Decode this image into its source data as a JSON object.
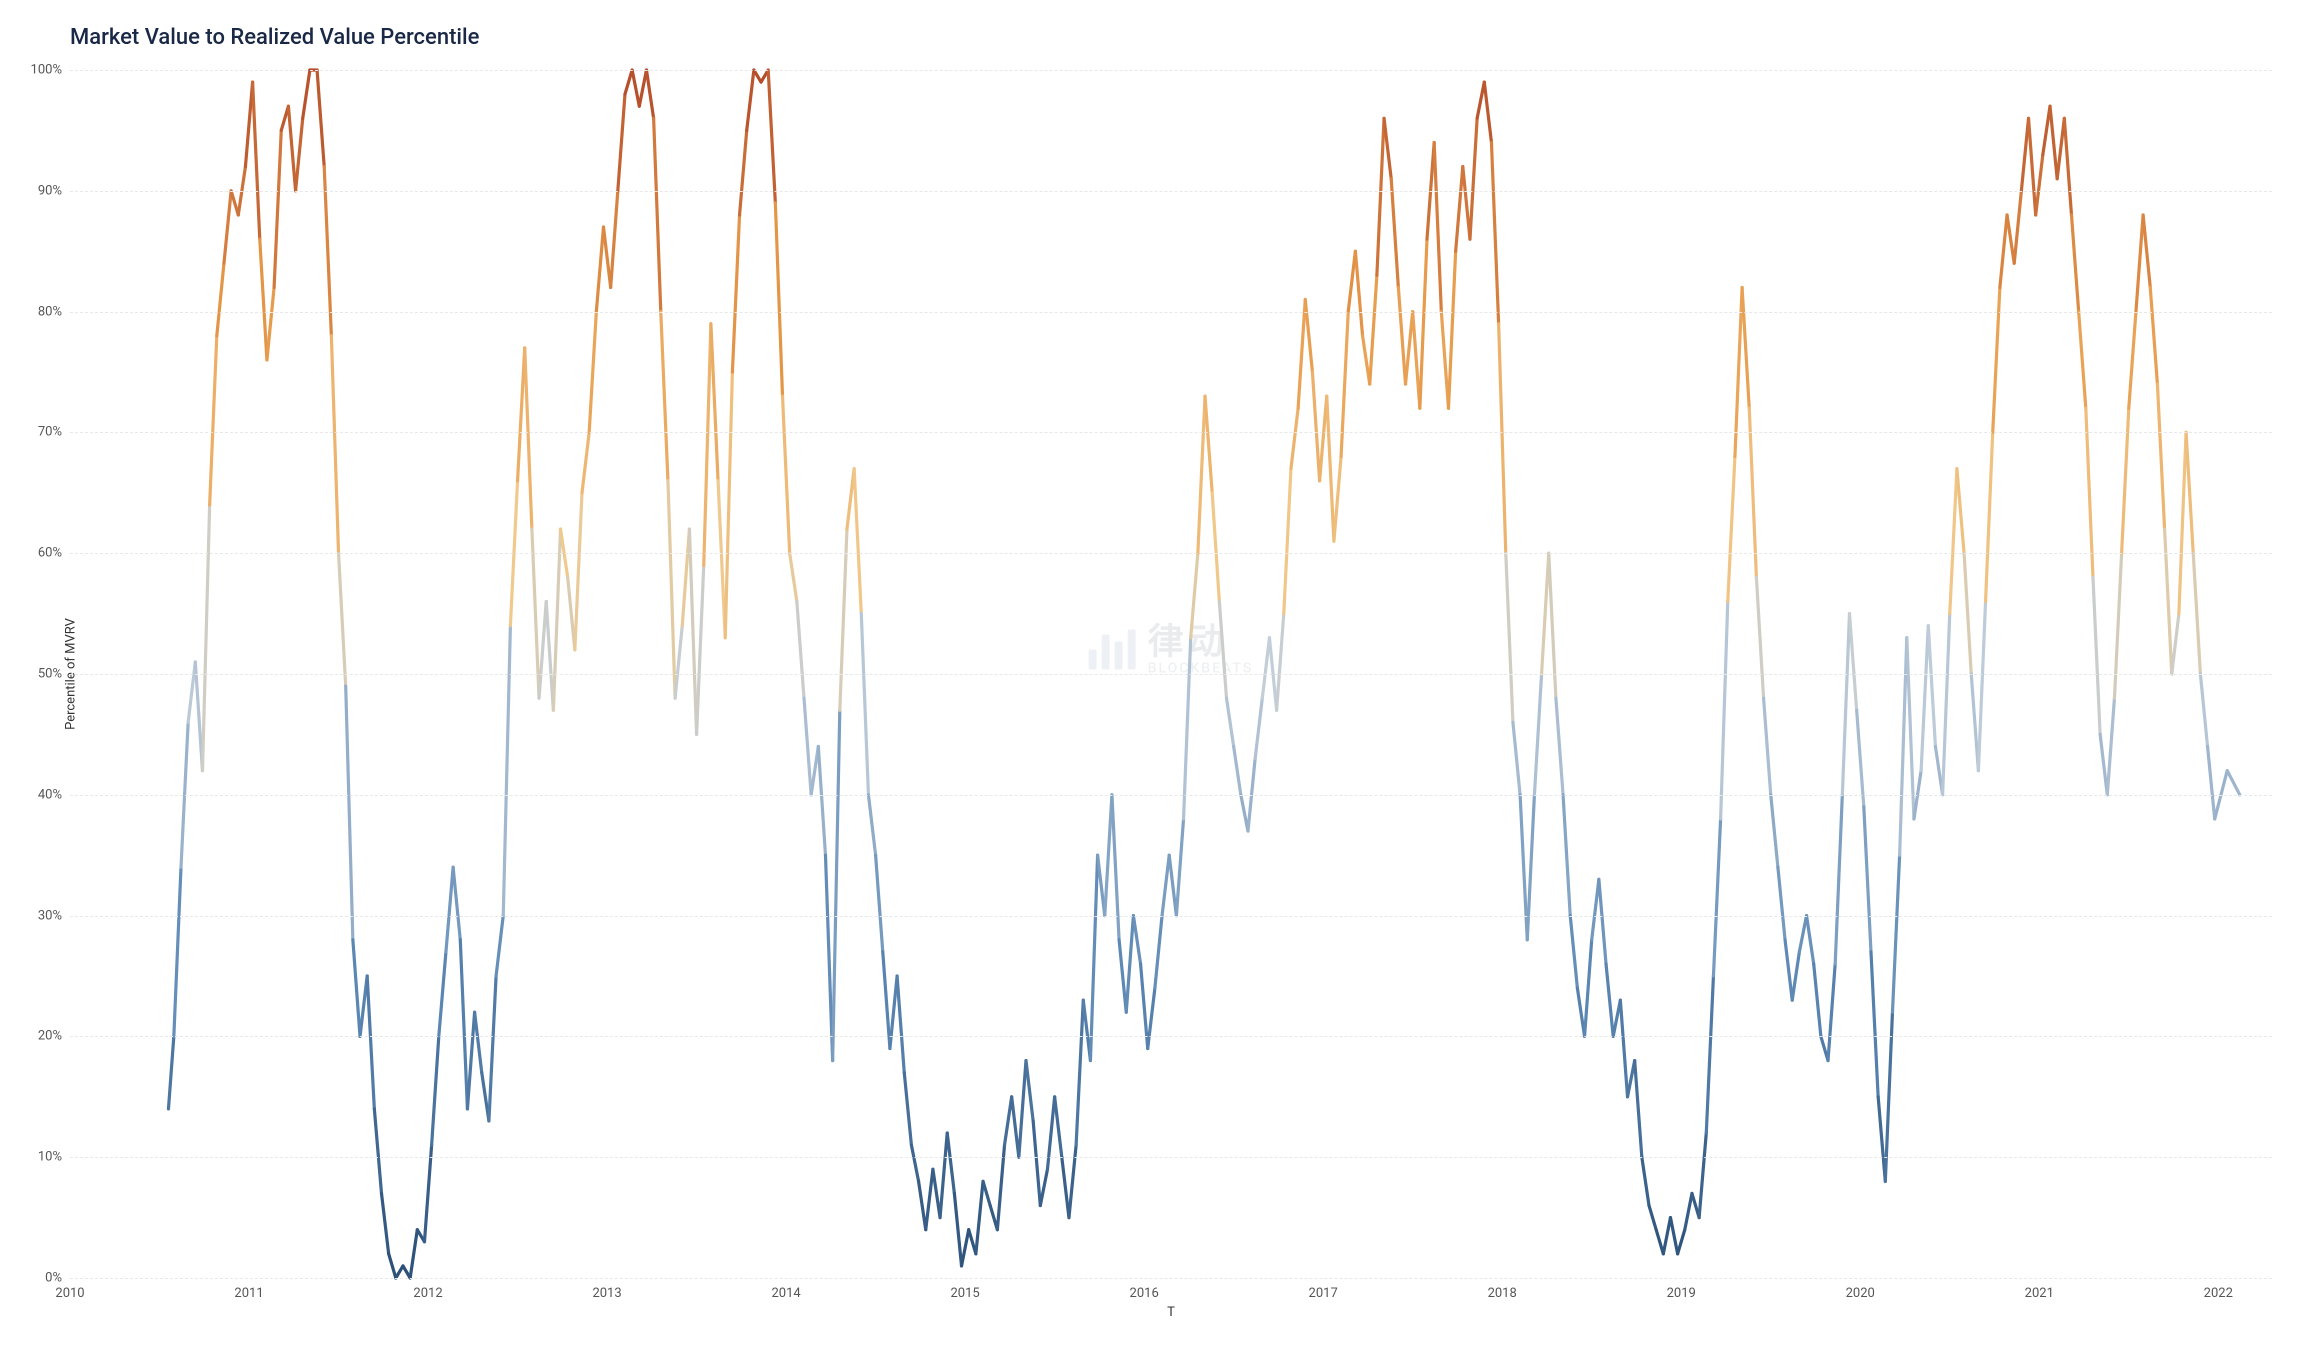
{
  "chart": {
    "type": "line",
    "title": "Market Value to Realized Value Percentile",
    "xlabel": "T",
    "ylabel": "Percentile of MVRV",
    "background_color": "#ffffff",
    "grid_color": "#e8e8e8",
    "title_color": "#1a2847",
    "title_fontsize": 22,
    "label_fontsize": 13,
    "tick_fontsize": 13,
    "tick_color": "#555555",
    "line_width": 1.6,
    "xlim": [
      2010,
      2022.3
    ],
    "ylim": [
      0,
      100
    ],
    "yticks": [
      0,
      10,
      20,
      30,
      40,
      50,
      60,
      70,
      80,
      90,
      100
    ],
    "ytick_labels": [
      "0%",
      "10%",
      "20%",
      "30%",
      "40%",
      "50%",
      "60%",
      "70%",
      "80%",
      "90%",
      "100%"
    ],
    "xticks": [
      2010,
      2011,
      2012,
      2013,
      2014,
      2015,
      2016,
      2017,
      2018,
      2019,
      2020,
      2021,
      2022
    ],
    "xtick_labels": [
      "2010",
      "2011",
      "2012",
      "2013",
      "2014",
      "2015",
      "2016",
      "2017",
      "2018",
      "2019",
      "2020",
      "2021",
      "2022"
    ],
    "gradient_stops": [
      {
        "v": 0,
        "c": "#2b4f77"
      },
      {
        "v": 25,
        "c": "#5d89b5"
      },
      {
        "v": 50,
        "c": "#c2ceda"
      },
      {
        "v": 60,
        "c": "#f0c98c"
      },
      {
        "v": 80,
        "c": "#e79a4a"
      },
      {
        "v": 100,
        "c": "#b34b2a"
      }
    ],
    "series": [
      {
        "x": 2010.55,
        "y": 14
      },
      {
        "x": 2010.58,
        "y": 20
      },
      {
        "x": 2010.62,
        "y": 34
      },
      {
        "x": 2010.66,
        "y": 46
      },
      {
        "x": 2010.7,
        "y": 51
      },
      {
        "x": 2010.74,
        "y": 42
      },
      {
        "x": 2010.78,
        "y": 64
      },
      {
        "x": 2010.82,
        "y": 78
      },
      {
        "x": 2010.86,
        "y": 84
      },
      {
        "x": 2010.9,
        "y": 90
      },
      {
        "x": 2010.94,
        "y": 88
      },
      {
        "x": 2010.98,
        "y": 92
      },
      {
        "x": 2011.02,
        "y": 99
      },
      {
        "x": 2011.06,
        "y": 86
      },
      {
        "x": 2011.1,
        "y": 76
      },
      {
        "x": 2011.14,
        "y": 82
      },
      {
        "x": 2011.18,
        "y": 95
      },
      {
        "x": 2011.22,
        "y": 97
      },
      {
        "x": 2011.26,
        "y": 90
      },
      {
        "x": 2011.3,
        "y": 96
      },
      {
        "x": 2011.34,
        "y": 100
      },
      {
        "x": 2011.38,
        "y": 100
      },
      {
        "x": 2011.42,
        "y": 92
      },
      {
        "x": 2011.46,
        "y": 78
      },
      {
        "x": 2011.5,
        "y": 60
      },
      {
        "x": 2011.54,
        "y": 49
      },
      {
        "x": 2011.58,
        "y": 28
      },
      {
        "x": 2011.62,
        "y": 20
      },
      {
        "x": 2011.66,
        "y": 25
      },
      {
        "x": 2011.7,
        "y": 14
      },
      {
        "x": 2011.74,
        "y": 7
      },
      {
        "x": 2011.78,
        "y": 2
      },
      {
        "x": 2011.82,
        "y": 0
      },
      {
        "x": 2011.86,
        "y": 1
      },
      {
        "x": 2011.9,
        "y": 0
      },
      {
        "x": 2011.94,
        "y": 4
      },
      {
        "x": 2011.98,
        "y": 3
      },
      {
        "x": 2012.02,
        "y": 11
      },
      {
        "x": 2012.06,
        "y": 20
      },
      {
        "x": 2012.1,
        "y": 27
      },
      {
        "x": 2012.14,
        "y": 34
      },
      {
        "x": 2012.18,
        "y": 28
      },
      {
        "x": 2012.22,
        "y": 14
      },
      {
        "x": 2012.26,
        "y": 22
      },
      {
        "x": 2012.3,
        "y": 17
      },
      {
        "x": 2012.34,
        "y": 13
      },
      {
        "x": 2012.38,
        "y": 25
      },
      {
        "x": 2012.42,
        "y": 30
      },
      {
        "x": 2012.46,
        "y": 54
      },
      {
        "x": 2012.5,
        "y": 66
      },
      {
        "x": 2012.54,
        "y": 77
      },
      {
        "x": 2012.58,
        "y": 62
      },
      {
        "x": 2012.62,
        "y": 48
      },
      {
        "x": 2012.66,
        "y": 56
      },
      {
        "x": 2012.7,
        "y": 47
      },
      {
        "x": 2012.74,
        "y": 62
      },
      {
        "x": 2012.78,
        "y": 58
      },
      {
        "x": 2012.82,
        "y": 52
      },
      {
        "x": 2012.86,
        "y": 65
      },
      {
        "x": 2012.9,
        "y": 70
      },
      {
        "x": 2012.94,
        "y": 80
      },
      {
        "x": 2012.98,
        "y": 87
      },
      {
        "x": 2013.02,
        "y": 82
      },
      {
        "x": 2013.06,
        "y": 90
      },
      {
        "x": 2013.1,
        "y": 98
      },
      {
        "x": 2013.14,
        "y": 100
      },
      {
        "x": 2013.18,
        "y": 97
      },
      {
        "x": 2013.22,
        "y": 100
      },
      {
        "x": 2013.26,
        "y": 96
      },
      {
        "x": 2013.3,
        "y": 80
      },
      {
        "x": 2013.34,
        "y": 66
      },
      {
        "x": 2013.38,
        "y": 48
      },
      {
        "x": 2013.42,
        "y": 54
      },
      {
        "x": 2013.46,
        "y": 62
      },
      {
        "x": 2013.5,
        "y": 45
      },
      {
        "x": 2013.54,
        "y": 59
      },
      {
        "x": 2013.58,
        "y": 79
      },
      {
        "x": 2013.62,
        "y": 66
      },
      {
        "x": 2013.66,
        "y": 53
      },
      {
        "x": 2013.7,
        "y": 75
      },
      {
        "x": 2013.74,
        "y": 88
      },
      {
        "x": 2013.78,
        "y": 95
      },
      {
        "x": 2013.82,
        "y": 100
      },
      {
        "x": 2013.86,
        "y": 99
      },
      {
        "x": 2013.9,
        "y": 100
      },
      {
        "x": 2013.94,
        "y": 89
      },
      {
        "x": 2013.98,
        "y": 73
      },
      {
        "x": 2014.02,
        "y": 60
      },
      {
        "x": 2014.06,
        "y": 56
      },
      {
        "x": 2014.1,
        "y": 48
      },
      {
        "x": 2014.14,
        "y": 40
      },
      {
        "x": 2014.18,
        "y": 44
      },
      {
        "x": 2014.22,
        "y": 35
      },
      {
        "x": 2014.26,
        "y": 18
      },
      {
        "x": 2014.3,
        "y": 47
      },
      {
        "x": 2014.34,
        "y": 62
      },
      {
        "x": 2014.38,
        "y": 67
      },
      {
        "x": 2014.42,
        "y": 55
      },
      {
        "x": 2014.46,
        "y": 40
      },
      {
        "x": 2014.5,
        "y": 35
      },
      {
        "x": 2014.54,
        "y": 27
      },
      {
        "x": 2014.58,
        "y": 19
      },
      {
        "x": 2014.62,
        "y": 25
      },
      {
        "x": 2014.66,
        "y": 17
      },
      {
        "x": 2014.7,
        "y": 11
      },
      {
        "x": 2014.74,
        "y": 8
      },
      {
        "x": 2014.78,
        "y": 4
      },
      {
        "x": 2014.82,
        "y": 9
      },
      {
        "x": 2014.86,
        "y": 5
      },
      {
        "x": 2014.9,
        "y": 12
      },
      {
        "x": 2014.94,
        "y": 7
      },
      {
        "x": 2014.98,
        "y": 1
      },
      {
        "x": 2015.02,
        "y": 4
      },
      {
        "x": 2015.06,
        "y": 2
      },
      {
        "x": 2015.1,
        "y": 8
      },
      {
        "x": 2015.14,
        "y": 6
      },
      {
        "x": 2015.18,
        "y": 4
      },
      {
        "x": 2015.22,
        "y": 11
      },
      {
        "x": 2015.26,
        "y": 15
      },
      {
        "x": 2015.3,
        "y": 10
      },
      {
        "x": 2015.34,
        "y": 18
      },
      {
        "x": 2015.38,
        "y": 13
      },
      {
        "x": 2015.42,
        "y": 6
      },
      {
        "x": 2015.46,
        "y": 9
      },
      {
        "x": 2015.5,
        "y": 15
      },
      {
        "x": 2015.54,
        "y": 10
      },
      {
        "x": 2015.58,
        "y": 5
      },
      {
        "x": 2015.62,
        "y": 11
      },
      {
        "x": 2015.66,
        "y": 23
      },
      {
        "x": 2015.7,
        "y": 18
      },
      {
        "x": 2015.74,
        "y": 35
      },
      {
        "x": 2015.78,
        "y": 30
      },
      {
        "x": 2015.82,
        "y": 40
      },
      {
        "x": 2015.86,
        "y": 28
      },
      {
        "x": 2015.9,
        "y": 22
      },
      {
        "x": 2015.94,
        "y": 30
      },
      {
        "x": 2015.98,
        "y": 26
      },
      {
        "x": 2016.02,
        "y": 19
      },
      {
        "x": 2016.06,
        "y": 24
      },
      {
        "x": 2016.1,
        "y": 30
      },
      {
        "x": 2016.14,
        "y": 35
      },
      {
        "x": 2016.18,
        "y": 30
      },
      {
        "x": 2016.22,
        "y": 38
      },
      {
        "x": 2016.26,
        "y": 53
      },
      {
        "x": 2016.3,
        "y": 60
      },
      {
        "x": 2016.34,
        "y": 73
      },
      {
        "x": 2016.38,
        "y": 65
      },
      {
        "x": 2016.42,
        "y": 56
      },
      {
        "x": 2016.46,
        "y": 48
      },
      {
        "x": 2016.5,
        "y": 44
      },
      {
        "x": 2016.54,
        "y": 40
      },
      {
        "x": 2016.58,
        "y": 37
      },
      {
        "x": 2016.62,
        "y": 43
      },
      {
        "x": 2016.66,
        "y": 48
      },
      {
        "x": 2016.7,
        "y": 53
      },
      {
        "x": 2016.74,
        "y": 47
      },
      {
        "x": 2016.78,
        "y": 55
      },
      {
        "x": 2016.82,
        "y": 67
      },
      {
        "x": 2016.86,
        "y": 72
      },
      {
        "x": 2016.9,
        "y": 81
      },
      {
        "x": 2016.94,
        "y": 75
      },
      {
        "x": 2016.98,
        "y": 66
      },
      {
        "x": 2017.02,
        "y": 73
      },
      {
        "x": 2017.06,
        "y": 61
      },
      {
        "x": 2017.1,
        "y": 68
      },
      {
        "x": 2017.14,
        "y": 80
      },
      {
        "x": 2017.18,
        "y": 85
      },
      {
        "x": 2017.22,
        "y": 78
      },
      {
        "x": 2017.26,
        "y": 74
      },
      {
        "x": 2017.3,
        "y": 83
      },
      {
        "x": 2017.34,
        "y": 96
      },
      {
        "x": 2017.38,
        "y": 91
      },
      {
        "x": 2017.42,
        "y": 82
      },
      {
        "x": 2017.46,
        "y": 74
      },
      {
        "x": 2017.5,
        "y": 80
      },
      {
        "x": 2017.54,
        "y": 72
      },
      {
        "x": 2017.58,
        "y": 86
      },
      {
        "x": 2017.62,
        "y": 94
      },
      {
        "x": 2017.66,
        "y": 80
      },
      {
        "x": 2017.7,
        "y": 72
      },
      {
        "x": 2017.74,
        "y": 85
      },
      {
        "x": 2017.78,
        "y": 92
      },
      {
        "x": 2017.82,
        "y": 86
      },
      {
        "x": 2017.86,
        "y": 96
      },
      {
        "x": 2017.9,
        "y": 99
      },
      {
        "x": 2017.94,
        "y": 94
      },
      {
        "x": 2017.98,
        "y": 79
      },
      {
        "x": 2018.02,
        "y": 60
      },
      {
        "x": 2018.06,
        "y": 46
      },
      {
        "x": 2018.1,
        "y": 40
      },
      {
        "x": 2018.14,
        "y": 28
      },
      {
        "x": 2018.18,
        "y": 40
      },
      {
        "x": 2018.22,
        "y": 50
      },
      {
        "x": 2018.26,
        "y": 60
      },
      {
        "x": 2018.3,
        "y": 48
      },
      {
        "x": 2018.34,
        "y": 40
      },
      {
        "x": 2018.38,
        "y": 30
      },
      {
        "x": 2018.42,
        "y": 24
      },
      {
        "x": 2018.46,
        "y": 20
      },
      {
        "x": 2018.5,
        "y": 28
      },
      {
        "x": 2018.54,
        "y": 33
      },
      {
        "x": 2018.58,
        "y": 26
      },
      {
        "x": 2018.62,
        "y": 20
      },
      {
        "x": 2018.66,
        "y": 23
      },
      {
        "x": 2018.7,
        "y": 15
      },
      {
        "x": 2018.74,
        "y": 18
      },
      {
        "x": 2018.78,
        "y": 10
      },
      {
        "x": 2018.82,
        "y": 6
      },
      {
        "x": 2018.86,
        "y": 4
      },
      {
        "x": 2018.9,
        "y": 2
      },
      {
        "x": 2018.94,
        "y": 5
      },
      {
        "x": 2018.98,
        "y": 2
      },
      {
        "x": 2019.02,
        "y": 4
      },
      {
        "x": 2019.06,
        "y": 7
      },
      {
        "x": 2019.1,
        "y": 5
      },
      {
        "x": 2019.14,
        "y": 12
      },
      {
        "x": 2019.18,
        "y": 25
      },
      {
        "x": 2019.22,
        "y": 38
      },
      {
        "x": 2019.26,
        "y": 56
      },
      {
        "x": 2019.3,
        "y": 68
      },
      {
        "x": 2019.34,
        "y": 82
      },
      {
        "x": 2019.38,
        "y": 72
      },
      {
        "x": 2019.42,
        "y": 58
      },
      {
        "x": 2019.46,
        "y": 48
      },
      {
        "x": 2019.5,
        "y": 40
      },
      {
        "x": 2019.54,
        "y": 34
      },
      {
        "x": 2019.58,
        "y": 28
      },
      {
        "x": 2019.62,
        "y": 23
      },
      {
        "x": 2019.66,
        "y": 27
      },
      {
        "x": 2019.7,
        "y": 30
      },
      {
        "x": 2019.74,
        "y": 26
      },
      {
        "x": 2019.78,
        "y": 20
      },
      {
        "x": 2019.82,
        "y": 18
      },
      {
        "x": 2019.86,
        "y": 26
      },
      {
        "x": 2019.9,
        "y": 40
      },
      {
        "x": 2019.94,
        "y": 55
      },
      {
        "x": 2019.98,
        "y": 47
      },
      {
        "x": 2020.02,
        "y": 39
      },
      {
        "x": 2020.06,
        "y": 27
      },
      {
        "x": 2020.1,
        "y": 15
      },
      {
        "x": 2020.14,
        "y": 8
      },
      {
        "x": 2020.18,
        "y": 22
      },
      {
        "x": 2020.22,
        "y": 35
      },
      {
        "x": 2020.26,
        "y": 53
      },
      {
        "x": 2020.3,
        "y": 38
      },
      {
        "x": 2020.34,
        "y": 42
      },
      {
        "x": 2020.38,
        "y": 54
      },
      {
        "x": 2020.42,
        "y": 44
      },
      {
        "x": 2020.46,
        "y": 40
      },
      {
        "x": 2020.5,
        "y": 55
      },
      {
        "x": 2020.54,
        "y": 67
      },
      {
        "x": 2020.58,
        "y": 60
      },
      {
        "x": 2020.62,
        "y": 50
      },
      {
        "x": 2020.66,
        "y": 42
      },
      {
        "x": 2020.7,
        "y": 56
      },
      {
        "x": 2020.74,
        "y": 70
      },
      {
        "x": 2020.78,
        "y": 82
      },
      {
        "x": 2020.82,
        "y": 88
      },
      {
        "x": 2020.86,
        "y": 84
      },
      {
        "x": 2020.9,
        "y": 90
      },
      {
        "x": 2020.94,
        "y": 96
      },
      {
        "x": 2020.98,
        "y": 88
      },
      {
        "x": 2021.02,
        "y": 93
      },
      {
        "x": 2021.06,
        "y": 97
      },
      {
        "x": 2021.1,
        "y": 91
      },
      {
        "x": 2021.14,
        "y": 96
      },
      {
        "x": 2021.18,
        "y": 88
      },
      {
        "x": 2021.22,
        "y": 80
      },
      {
        "x": 2021.26,
        "y": 72
      },
      {
        "x": 2021.3,
        "y": 58
      },
      {
        "x": 2021.34,
        "y": 45
      },
      {
        "x": 2021.38,
        "y": 40
      },
      {
        "x": 2021.42,
        "y": 48
      },
      {
        "x": 2021.46,
        "y": 60
      },
      {
        "x": 2021.5,
        "y": 72
      },
      {
        "x": 2021.54,
        "y": 80
      },
      {
        "x": 2021.58,
        "y": 88
      },
      {
        "x": 2021.62,
        "y": 82
      },
      {
        "x": 2021.66,
        "y": 74
      },
      {
        "x": 2021.7,
        "y": 62
      },
      {
        "x": 2021.74,
        "y": 50
      },
      {
        "x": 2021.78,
        "y": 55
      },
      {
        "x": 2021.82,
        "y": 70
      },
      {
        "x": 2021.86,
        "y": 60
      },
      {
        "x": 2021.9,
        "y": 50
      },
      {
        "x": 2021.94,
        "y": 44
      },
      {
        "x": 2021.98,
        "y": 38
      },
      {
        "x": 2022.05,
        "y": 42
      },
      {
        "x": 2022.12,
        "y": 40
      }
    ]
  },
  "watermark": {
    "cn": "律动",
    "en": "BLOCKBEATS"
  }
}
